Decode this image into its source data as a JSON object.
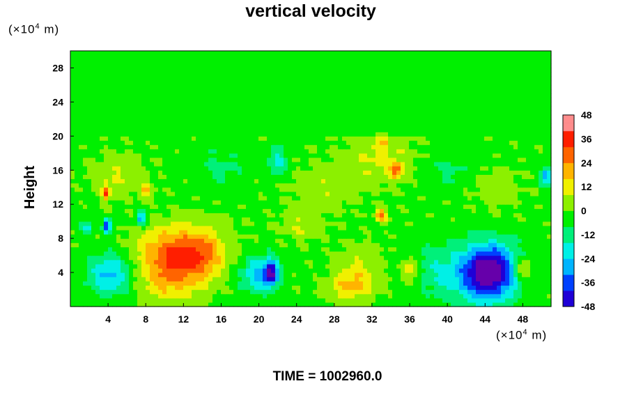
{
  "title": "vertical velocity",
  "footer": {
    "time_label": "TIME = 1002960.0"
  },
  "chart_data": {
    "type": "heatmap",
    "title": "vertical velocity",
    "ylabel": "Height",
    "x_unit": {
      "prefix": "(×10",
      "exponent": "4",
      "suffix": " m)"
    },
    "y_unit": {
      "prefix": "(×10",
      "exponent": "4",
      "suffix": " m)"
    },
    "xlim": [
      0,
      51
    ],
    "ylim": [
      0,
      30
    ],
    "x_ticks": [
      4,
      8,
      12,
      16,
      20,
      24,
      28,
      32,
      36,
      40,
      44,
      48
    ],
    "y_ticks": [
      4,
      8,
      12,
      16,
      20,
      24,
      28
    ],
    "colorbar": {
      "range": [
        -48,
        48
      ],
      "ticks": [
        48,
        36,
        24,
        12,
        0,
        -12,
        -24,
        -36,
        -48
      ],
      "stops": [
        {
          "v": -48,
          "color": "#6600aa"
        },
        {
          "v": -40,
          "color": "#1f00d6"
        },
        {
          "v": -32,
          "color": "#0040ff"
        },
        {
          "v": -24,
          "color": "#00b4ff"
        },
        {
          "v": -16,
          "color": "#00f0e6"
        },
        {
          "v": -8,
          "color": "#00f07a"
        },
        {
          "v": 0,
          "color": "#00f000"
        },
        {
          "v": 8,
          "color": "#8cf000"
        },
        {
          "v": 16,
          "color": "#f0f000"
        },
        {
          "v": 24,
          "color": "#ffb400"
        },
        {
          "v": 32,
          "color": "#ff6400"
        },
        {
          "v": 40,
          "color": "#ff1e00"
        },
        {
          "v": 48,
          "color": "#ff8c8c"
        }
      ]
    },
    "features": [
      {
        "x": 4.2,
        "y": 3.8,
        "sx": 1.6,
        "sy": 1.8,
        "v": -24
      },
      {
        "x": 10.5,
        "y": 4.5,
        "sx": 2.2,
        "sy": 2.6,
        "v": 28
      },
      {
        "x": 14.0,
        "y": 5.5,
        "sx": 1.6,
        "sy": 2.0,
        "v": 20
      },
      {
        "x": 12.0,
        "y": 7.5,
        "sx": 3.5,
        "sy": 1.8,
        "v": 14
      },
      {
        "x": 20.0,
        "y": 3.8,
        "sx": 1.3,
        "sy": 1.6,
        "v": -24
      },
      {
        "x": 21.3,
        "y": 4.0,
        "sx": 0.5,
        "sy": 1.0,
        "v": -40
      },
      {
        "x": 29.5,
        "y": 2.4,
        "sx": 1.5,
        "sy": 1.2,
        "v": 18
      },
      {
        "x": 31.0,
        "y": 4.5,
        "sx": 1.7,
        "sy": 2.0,
        "v": 10
      },
      {
        "x": 36.2,
        "y": 4.5,
        "sx": 0.7,
        "sy": 1.0,
        "v": 20
      },
      {
        "x": 44.5,
        "y": 4.3,
        "sx": 1.8,
        "sy": 2.2,
        "v": -42
      },
      {
        "x": 43.0,
        "y": 3.5,
        "sx": 3.0,
        "sy": 2.4,
        "v": -20
      },
      {
        "x": 48.0,
        "y": 4.5,
        "sx": 0.6,
        "sy": 0.9,
        "v": 20
      },
      {
        "x": 38.0,
        "y": 5.0,
        "sx": 1.8,
        "sy": 2.0,
        "v": -8
      },
      {
        "x": 3.9,
        "y": 9.5,
        "sx": 0.3,
        "sy": 0.6,
        "v": -38
      },
      {
        "x": 7.5,
        "y": 10.3,
        "sx": 0.4,
        "sy": 0.6,
        "v": -28
      },
      {
        "x": 1.7,
        "y": 9.2,
        "sx": 0.4,
        "sy": 0.5,
        "v": -22
      },
      {
        "x": 3.8,
        "y": 13.4,
        "sx": 0.3,
        "sy": 0.6,
        "v": 36
      },
      {
        "x": 8.0,
        "y": 13.5,
        "sx": 0.5,
        "sy": 0.6,
        "v": 18
      },
      {
        "x": 5.0,
        "y": 15.5,
        "sx": 2.0,
        "sy": 1.6,
        "v": 10
      },
      {
        "x": 22.0,
        "y": 17.0,
        "sx": 0.7,
        "sy": 1.2,
        "v": -18
      },
      {
        "x": 33.0,
        "y": 17.5,
        "sx": 2.5,
        "sy": 2.0,
        "v": 12
      },
      {
        "x": 34.6,
        "y": 16.0,
        "sx": 0.5,
        "sy": 0.6,
        "v": 26
      },
      {
        "x": 33.2,
        "y": 19.4,
        "sx": 0.4,
        "sy": 0.4,
        "v": 20
      },
      {
        "x": 50.5,
        "y": 15.3,
        "sx": 0.4,
        "sy": 0.8,
        "v": -28
      },
      {
        "x": 27.0,
        "y": 14.0,
        "sx": 2.5,
        "sy": 2.0,
        "v": 8
      },
      {
        "x": 40.0,
        "y": 16.0,
        "sx": 2.0,
        "sy": 1.5,
        "v": -8
      },
      {
        "x": 45.0,
        "y": 14.0,
        "sx": 2.0,
        "sy": 1.6,
        "v": 7
      },
      {
        "x": 16.0,
        "y": 16.5,
        "sx": 2.0,
        "sy": 1.6,
        "v": -8
      },
      {
        "x": 24.5,
        "y": 9.5,
        "sx": 1.5,
        "sy": 1.2,
        "v": 10
      },
      {
        "x": 33.0,
        "y": 10.8,
        "sx": 0.4,
        "sy": 0.5,
        "v": 30
      }
    ]
  }
}
